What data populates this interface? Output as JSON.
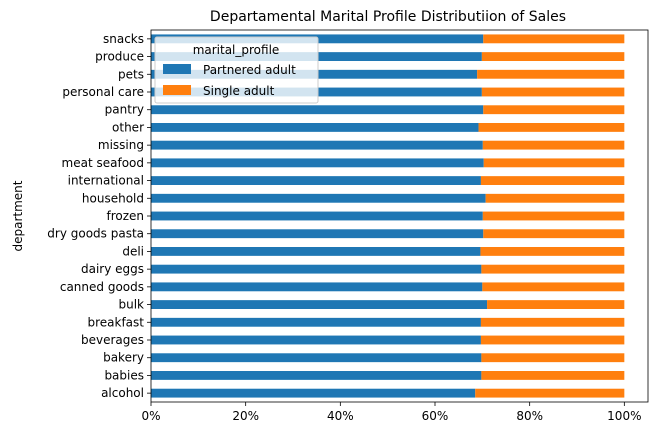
{
  "chart_data": {
    "type": "bar",
    "orientation": "horizontal",
    "stacked": true,
    "title": "Departamental Marital Profile Distributiion of Sales",
    "xlabel": "",
    "ylabel": "department",
    "xlim": [
      0,
      1.05
    ],
    "xticks": [
      {
        "value": 0,
        "label": "0%"
      },
      {
        "value": 0.2,
        "label": "20%"
      },
      {
        "value": 0.4,
        "label": "40%"
      },
      {
        "value": 0.6,
        "label": "60%"
      },
      {
        "value": 0.8,
        "label": "80%"
      },
      {
        "value": 1.0,
        "label": "100%"
      }
    ],
    "categories": [
      "alcohol",
      "babies",
      "bakery",
      "beverages",
      "breakfast",
      "bulk",
      "canned goods",
      "dairy eggs",
      "deli",
      "dry goods pasta",
      "frozen",
      "household",
      "international",
      "meat seafood",
      "missing",
      "other",
      "pantry",
      "personal care",
      "pets",
      "produce",
      "snacks"
    ],
    "series": [
      {
        "name": "Partnered adult",
        "color": "#1f77b4",
        "values": [
          0.685,
          0.698,
          0.698,
          0.697,
          0.697,
          0.71,
          0.7,
          0.698,
          0.696,
          0.702,
          0.701,
          0.707,
          0.697,
          0.703,
          0.701,
          0.692,
          0.702,
          0.699,
          0.689,
          0.699,
          0.702
        ]
      },
      {
        "name": "Single adult",
        "color": "#ff7f0e",
        "values": [
          0.315,
          0.302,
          0.302,
          0.303,
          0.303,
          0.29,
          0.3,
          0.302,
          0.304,
          0.298,
          0.299,
          0.293,
          0.303,
          0.297,
          0.299,
          0.308,
          0.298,
          0.301,
          0.311,
          0.301,
          0.298
        ]
      }
    ],
    "legend": {
      "title": "marital_profile",
      "placement": "top-left"
    },
    "grid": false
  }
}
